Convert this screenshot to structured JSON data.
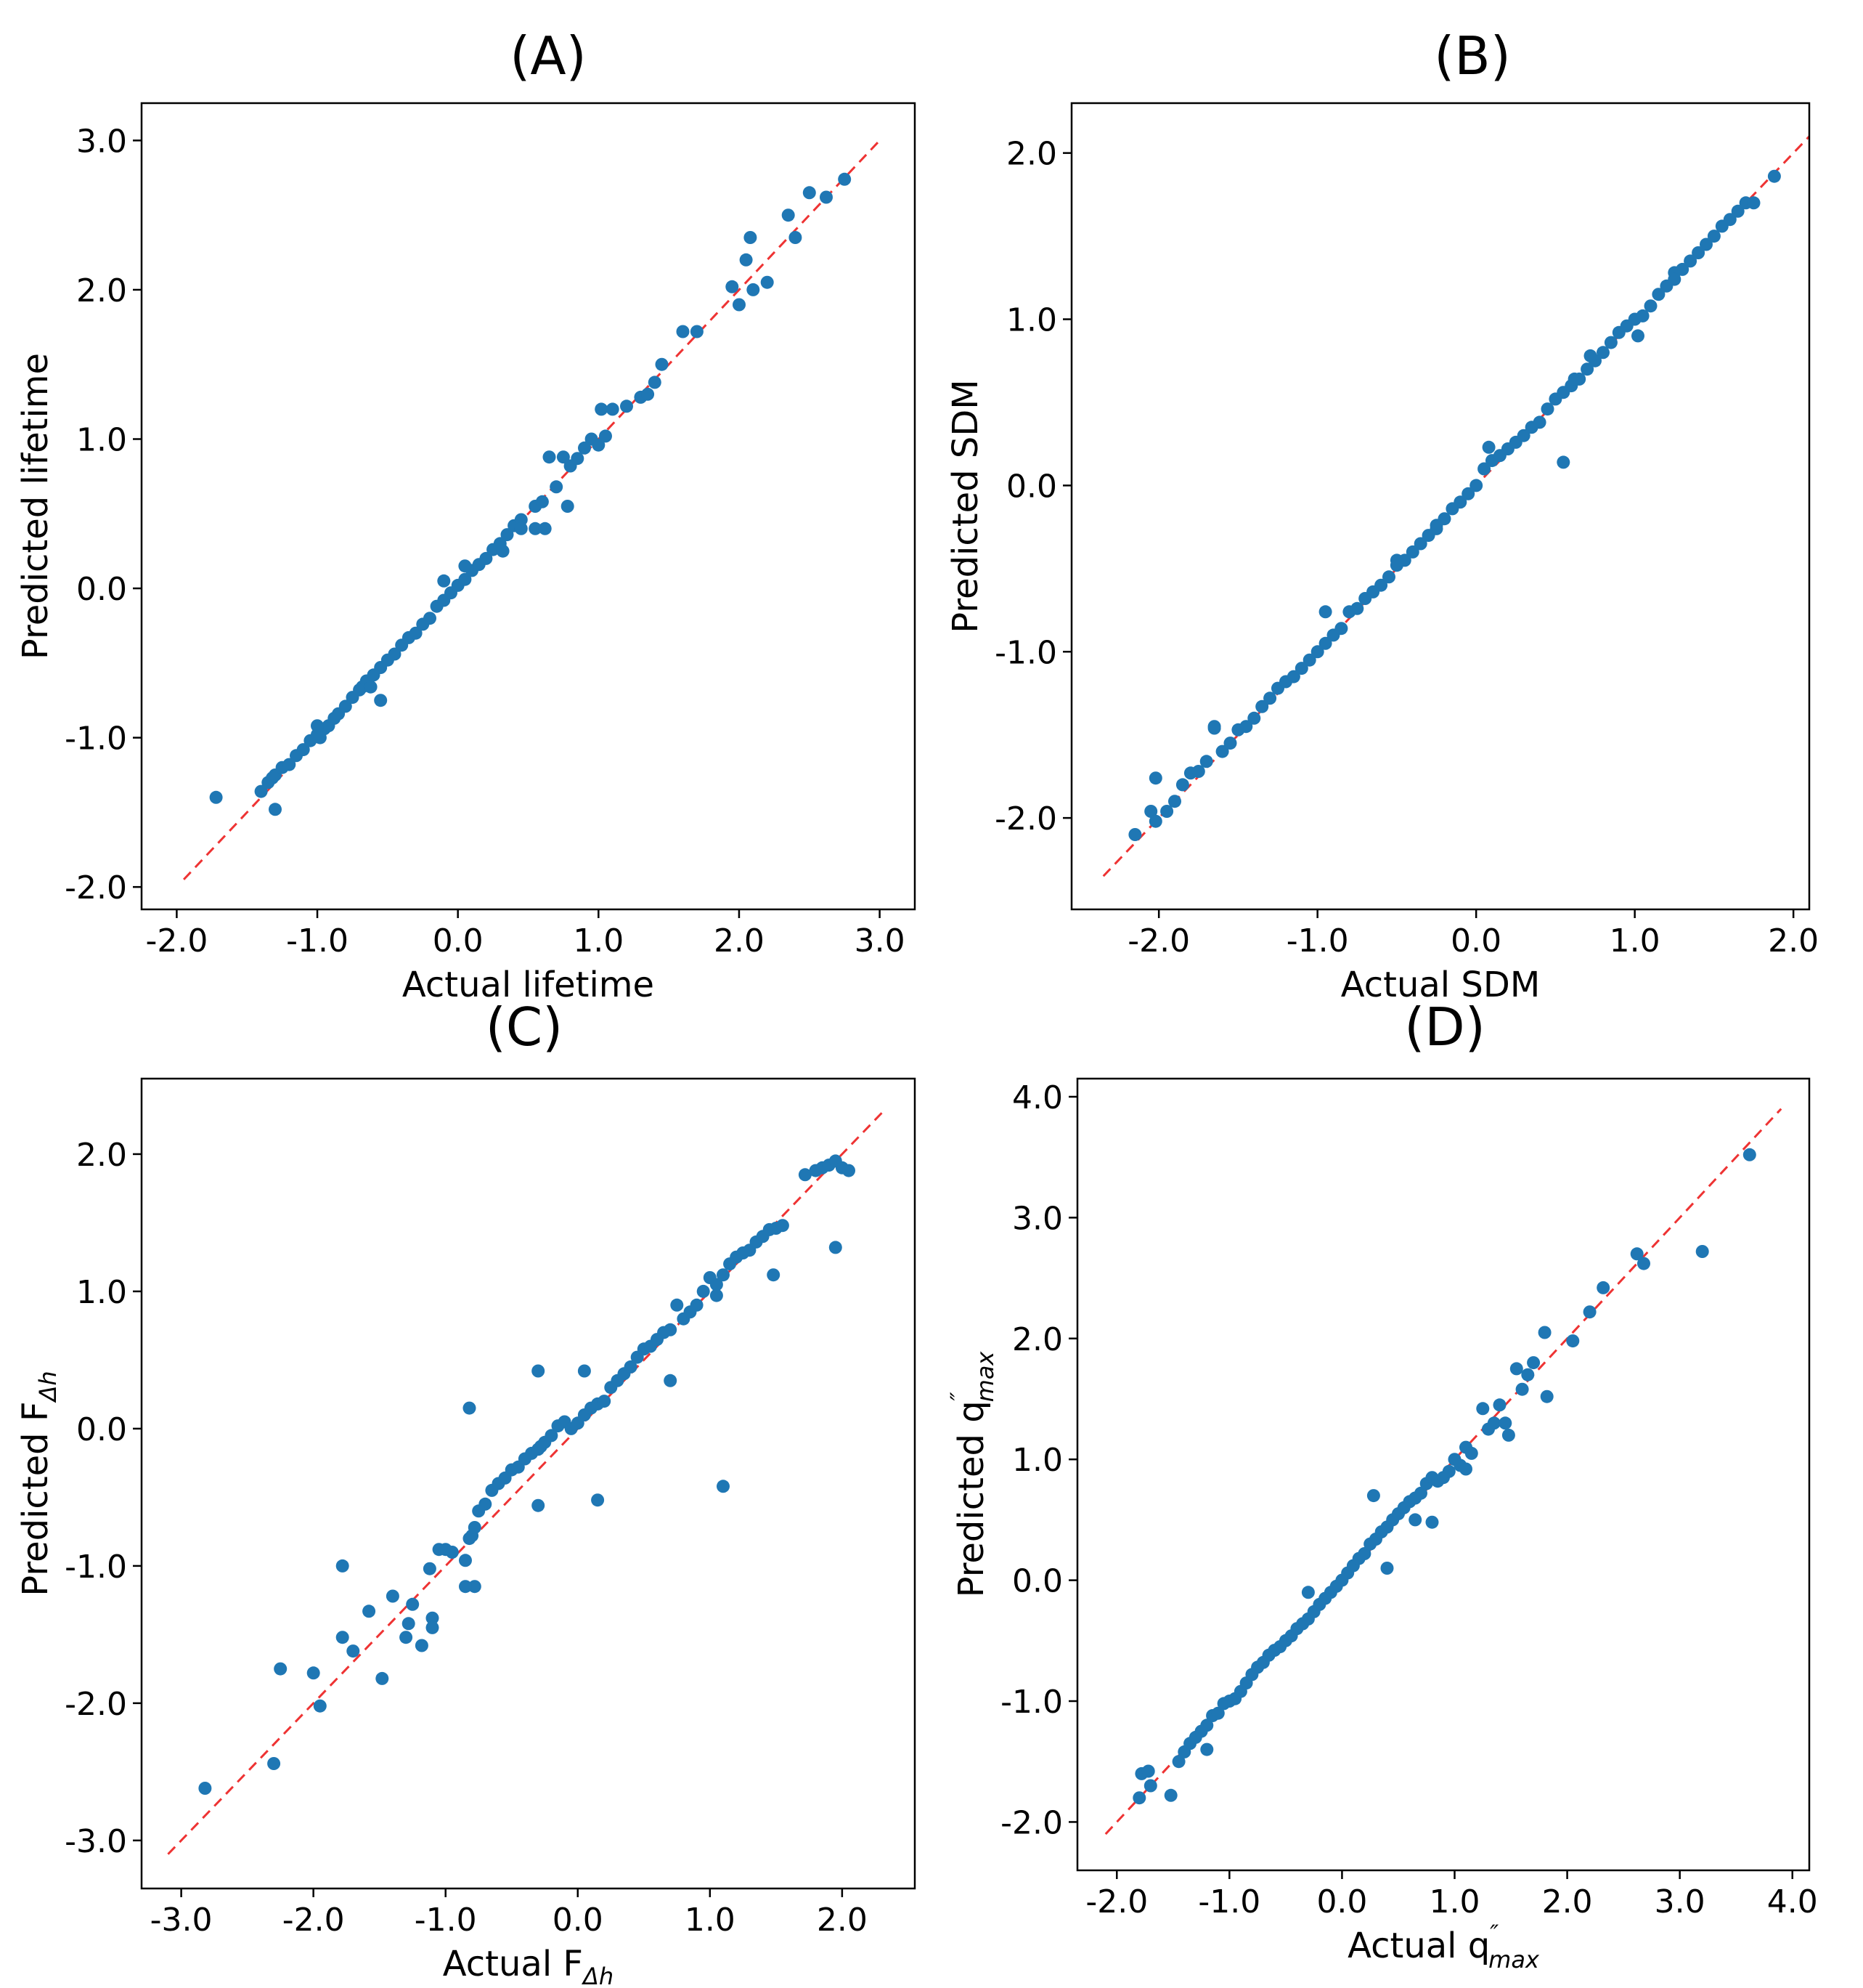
{
  "chart_data": [
    {
      "type": "scatter",
      "title": "(A)",
      "xlabel": "Actual lifetime",
      "ylabel": "Predicted lifetime",
      "xlim": [
        -2.25,
        3.25
      ],
      "ylim": [
        -2.15,
        3.25
      ],
      "xticks": [
        -2.0,
        -1.0,
        0.0,
        1.0,
        2.0,
        3.0
      ],
      "yticks": [
        -2.0,
        -1.0,
        0.0,
        1.0,
        2.0,
        3.0
      ],
      "xtick_labels": [
        "-2.0",
        "-1.0",
        "0.0",
        "1.0",
        "2.0",
        "3.0"
      ],
      "ytick_labels": [
        "-2.0",
        "-1.0",
        "0.0",
        "1.0",
        "2.0",
        "3.0"
      ],
      "reference_line": {
        "from": -1.95,
        "to": 3.0,
        "color": "#ee3333"
      },
      "point_color": "#1f77b4",
      "x": [
        -1.72,
        -1.4,
        -1.35,
        -1.32,
        -1.3,
        -1.25,
        -1.2,
        -1.15,
        -1.1,
        -1.05,
        -1.0,
        -0.95,
        -0.92,
        -0.88,
        -0.85,
        -0.8,
        -0.75,
        -0.7,
        -0.68,
        -0.65,
        -0.6,
        -0.55,
        -0.5,
        -0.45,
        -0.4,
        -0.35,
        -0.3,
        -0.25,
        -0.2,
        -0.15,
        -0.1,
        -0.05,
        0.0,
        0.05,
        0.1,
        0.15,
        0.2,
        0.25,
        0.3,
        0.35,
        0.4,
        0.45,
        0.55,
        0.6,
        0.65,
        0.7,
        0.75,
        0.8,
        0.85,
        0.9,
        0.95,
        1.0,
        1.05,
        1.1,
        1.2,
        1.3,
        1.35,
        1.4,
        1.45,
        1.6,
        1.7,
        1.95,
        2.0,
        2.05,
        2.1,
        2.2,
        2.35,
        2.4,
        2.5,
        2.62,
        2.75,
        -1.3,
        -1.0,
        -0.55,
        -0.1,
        0.05,
        0.45,
        -0.98,
        -0.62,
        0.32,
        0.55,
        0.62,
        1.02,
        2.08,
        0.78
      ],
      "y": [
        -1.4,
        -1.36,
        -1.3,
        -1.27,
        -1.25,
        -1.2,
        -1.18,
        -1.12,
        -1.08,
        -1.02,
        -0.98,
        -0.94,
        -0.92,
        -0.87,
        -0.84,
        -0.79,
        -0.73,
        -0.68,
        -0.66,
        -0.62,
        -0.58,
        -0.53,
        -0.48,
        -0.44,
        -0.38,
        -0.33,
        -0.3,
        -0.24,
        -0.2,
        -0.12,
        -0.08,
        -0.03,
        0.02,
        0.06,
        0.12,
        0.16,
        0.2,
        0.26,
        0.3,
        0.36,
        0.42,
        0.46,
        0.55,
        0.58,
        0.88,
        0.68,
        0.88,
        0.82,
        0.87,
        0.94,
        1.0,
        0.96,
        1.02,
        1.2,
        1.22,
        1.28,
        1.3,
        1.38,
        1.5,
        1.72,
        1.72,
        2.02,
        1.9,
        2.2,
        2.0,
        2.05,
        2.5,
        2.35,
        2.65,
        2.62,
        2.74,
        -1.48,
        -0.92,
        -0.75,
        0.05,
        0.15,
        0.4,
        -1.0,
        -0.66,
        0.25,
        0.4,
        0.4,
        1.2,
        2.35,
        0.55
      ]
    },
    {
      "type": "scatter",
      "title": "(B)",
      "xlabel": "Actual SDM",
      "ylabel": "Predicted SDM",
      "xlim": [
        -2.55,
        2.1
      ],
      "ylim": [
        -2.55,
        2.3
      ],
      "xticks": [
        -2.0,
        -1.0,
        0.0,
        1.0,
        2.0
      ],
      "yticks": [
        -2.0,
        -1.0,
        0.0,
        1.0,
        2.0
      ],
      "xtick_labels": [
        "-2.0",
        "-1.0",
        "0.0",
        "1.0",
        "2.0"
      ],
      "ytick_labels": [
        "-2.0",
        "-1.0",
        "0.0",
        "1.0",
        "2.0"
      ],
      "reference_line": {
        "from": -2.35,
        "to": 2.1,
        "color": "#ee3333"
      },
      "point_color": "#1f77b4",
      "x": [
        -2.15,
        -2.05,
        -2.02,
        -1.95,
        -1.9,
        -1.85,
        -1.8,
        -1.75,
        -1.7,
        -1.65,
        -1.6,
        -1.55,
        -1.5,
        -1.45,
        -1.4,
        -1.35,
        -1.3,
        -1.25,
        -1.2,
        -1.15,
        -1.1,
        -1.05,
        -1.0,
        -0.95,
        -0.9,
        -0.85,
        -0.8,
        -0.75,
        -0.7,
        -0.65,
        -0.6,
        -0.55,
        -0.5,
        -0.45,
        -0.4,
        -0.35,
        -0.3,
        -0.25,
        -0.2,
        -0.15,
        -0.1,
        -0.05,
        0.0,
        0.05,
        0.1,
        0.15,
        0.2,
        0.25,
        0.3,
        0.35,
        0.4,
        0.45,
        0.5,
        0.55,
        0.6,
        0.65,
        0.7,
        0.75,
        0.8,
        0.85,
        0.9,
        0.95,
        1.0,
        1.05,
        1.1,
        1.15,
        1.2,
        1.25,
        1.3,
        1.35,
        1.4,
        1.45,
        1.5,
        1.55,
        1.6,
        1.65,
        1.7,
        1.75,
        1.88,
        -2.02,
        -1.65,
        -0.95,
        -0.5,
        0.08,
        0.55,
        0.62,
        1.02,
        1.25,
        -0.25,
        0.72
      ],
      "y": [
        -2.1,
        -1.96,
        -1.76,
        -1.96,
        -1.9,
        -1.8,
        -1.73,
        -1.72,
        -1.66,
        -1.46,
        -1.6,
        -1.55,
        -1.47,
        -1.45,
        -1.4,
        -1.33,
        -1.28,
        -1.22,
        -1.18,
        -1.15,
        -1.1,
        -1.05,
        -1.0,
        -0.95,
        -0.9,
        -0.86,
        -0.76,
        -0.74,
        -0.68,
        -0.64,
        -0.6,
        -0.55,
        -0.48,
        -0.45,
        -0.4,
        -0.35,
        -0.3,
        -0.26,
        -0.2,
        -0.14,
        -0.1,
        -0.05,
        0.0,
        0.1,
        0.15,
        0.18,
        0.22,
        0.26,
        0.3,
        0.35,
        0.38,
        0.46,
        0.52,
        0.56,
        0.6,
        0.64,
        0.7,
        0.75,
        0.8,
        0.86,
        0.92,
        0.96,
        1.0,
        1.02,
        1.08,
        1.15,
        1.2,
        1.28,
        1.3,
        1.35,
        1.4,
        1.45,
        1.5,
        1.56,
        1.6,
        1.65,
        1.7,
        1.7,
        1.86,
        -2.02,
        -1.45,
        -0.76,
        -0.45,
        0.23,
        0.14,
        0.64,
        0.9,
        1.24,
        -0.24,
        0.78
      ]
    },
    {
      "type": "scatter",
      "title": "(C)",
      "xlabel": "Actual F",
      "xlabel_sub": "Δh",
      "ylabel": "Predicted F",
      "ylabel_sub": "Δh",
      "xlim": [
        -3.3,
        2.55
      ],
      "ylim": [
        -3.35,
        2.55
      ],
      "xticks": [
        -3.0,
        -2.0,
        -1.0,
        0.0,
        1.0,
        2.0
      ],
      "yticks": [
        -3.0,
        -2.0,
        -1.0,
        0.0,
        1.0,
        2.0
      ],
      "xtick_labels": [
        "-3.0",
        "-2.0",
        "-1.0",
        "0.0",
        "1.0",
        "2.0"
      ],
      "ytick_labels": [
        "-3.0",
        "-2.0",
        "-1.0",
        "0.0",
        "1.0",
        "2.0"
      ],
      "reference_line": {
        "from": -3.1,
        "to": 2.3,
        "color": "#ee3333"
      },
      "point_color": "#1f77b4",
      "x": [
        -2.82,
        -2.3,
        -2.25,
        -2.0,
        -1.95,
        -1.78,
        -1.78,
        -1.7,
        -1.58,
        -1.48,
        -1.4,
        -1.3,
        -1.28,
        -1.25,
        -1.18,
        -1.12,
        -1.1,
        -1.1,
        -1.05,
        -1.0,
        -0.95,
        -0.85,
        -0.82,
        -0.8,
        -0.78,
        -0.75,
        -0.7,
        -0.65,
        -0.6,
        -0.55,
        -0.5,
        -0.45,
        -0.4,
        -0.35,
        -0.3,
        -0.28,
        -0.25,
        -0.2,
        -0.15,
        -0.1,
        -0.05,
        0.0,
        0.05,
        0.1,
        0.15,
        0.2,
        0.25,
        0.3,
        0.35,
        0.4,
        0.45,
        0.5,
        0.55,
        0.6,
        0.65,
        0.7,
        0.75,
        0.8,
        0.85,
        0.9,
        0.95,
        1.0,
        1.05,
        1.1,
        1.15,
        1.2,
        1.25,
        1.3,
        1.35,
        1.4,
        1.45,
        1.5,
        1.55,
        1.72,
        1.8,
        1.85,
        1.9,
        1.95,
        2.0,
        2.05,
        1.95,
        1.1,
        -0.82,
        0.15,
        -0.3,
        0.05,
        -0.78,
        -0.85,
        -0.3,
        0.7,
        1.48,
        1.05
      ],
      "y": [
        -2.62,
        -2.44,
        -1.75,
        -1.78,
        -2.02,
        -1.0,
        -1.52,
        -1.62,
        -1.33,
        -1.82,
        -1.22,
        -1.52,
        -1.42,
        -1.28,
        -1.58,
        -1.02,
        -1.38,
        -1.45,
        -0.88,
        -0.88,
        -0.9,
        -0.96,
        -0.8,
        -0.78,
        -0.72,
        -0.6,
        -0.55,
        -0.45,
        -0.4,
        -0.36,
        -0.3,
        -0.28,
        -0.22,
        -0.18,
        -0.15,
        -0.13,
        -0.1,
        -0.05,
        0.02,
        0.05,
        0.0,
        0.04,
        0.1,
        0.15,
        0.18,
        0.2,
        0.3,
        0.35,
        0.4,
        0.45,
        0.52,
        0.58,
        0.6,
        0.65,
        0.7,
        0.72,
        0.9,
        0.8,
        0.85,
        0.9,
        1.0,
        1.1,
        1.05,
        1.12,
        1.2,
        1.25,
        1.28,
        1.3,
        1.36,
        1.4,
        1.45,
        1.46,
        1.48,
        1.85,
        1.88,
        1.9,
        1.92,
        1.95,
        1.9,
        1.88,
        1.32,
        -0.42,
        0.15,
        -0.52,
        0.42,
        0.42,
        -1.15,
        -1.15,
        -0.56,
        0.35,
        1.12,
        0.97
      ]
    },
    {
      "type": "scatter",
      "title": "(D)",
      "xlabel": "Actual q",
      "xlabel_sub": "max",
      "xlabel_sup": "″",
      "ylabel": "Predicted q",
      "ylabel_sub": "max",
      "ylabel_sup": "″",
      "xlim": [
        -2.35,
        4.15
      ],
      "ylim": [
        -2.4,
        4.15
      ],
      "xticks": [
        -2.0,
        -1.0,
        0.0,
        1.0,
        2.0,
        3.0,
        4.0
      ],
      "yticks": [
        -2.0,
        -1.0,
        0.0,
        1.0,
        2.0,
        3.0,
        4.0
      ],
      "xtick_labels": [
        "-2.0",
        "-1.0",
        "0.0",
        "1.0",
        "2.0",
        "3.0",
        "4.0"
      ],
      "ytick_labels": [
        "-2.0",
        "-1.0",
        "0.0",
        "1.0",
        "2.0",
        "3.0",
        "4.0"
      ],
      "reference_line": {
        "from": -2.1,
        "to": 3.9,
        "color": "#ee3333"
      },
      "point_color": "#1f77b4",
      "x": [
        -1.8,
        -1.78,
        -1.72,
        -1.7,
        -1.52,
        -1.45,
        -1.4,
        -1.35,
        -1.3,
        -1.25,
        -1.2,
        -1.15,
        -1.1,
        -1.05,
        -1.0,
        -0.95,
        -0.9,
        -0.85,
        -0.8,
        -0.75,
        -0.7,
        -0.65,
        -0.6,
        -0.55,
        -0.5,
        -0.45,
        -0.4,
        -0.35,
        -0.3,
        -0.25,
        -0.2,
        -0.15,
        -0.1,
        -0.05,
        0.0,
        0.05,
        0.1,
        0.15,
        0.2,
        0.25,
        0.3,
        0.35,
        0.4,
        0.45,
        0.5,
        0.55,
        0.6,
        0.65,
        0.7,
        0.75,
        0.8,
        0.85,
        0.9,
        0.95,
        1.0,
        1.05,
        1.1,
        1.15,
        1.25,
        1.3,
        1.35,
        1.4,
        1.45,
        1.55,
        1.6,
        1.65,
        1.7,
        1.8,
        1.82,
        2.05,
        2.2,
        2.32,
        2.62,
        2.68,
        3.2,
        3.62,
        0.28,
        0.4,
        1.48,
        0.8,
        0.65,
        -1.2,
        1.1,
        -0.3
      ],
      "y": [
        -1.8,
        -1.6,
        -1.58,
        -1.7,
        -1.78,
        -1.5,
        -1.42,
        -1.35,
        -1.3,
        -1.25,
        -1.2,
        -1.12,
        -1.1,
        -1.02,
        -1.0,
        -0.98,
        -0.92,
        -0.85,
        -0.78,
        -0.72,
        -0.68,
        -0.62,
        -0.58,
        -0.55,
        -0.5,
        -0.46,
        -0.4,
        -0.36,
        -0.32,
        -0.26,
        -0.2,
        -0.15,
        -0.1,
        -0.05,
        0.0,
        0.06,
        0.12,
        0.18,
        0.22,
        0.3,
        0.34,
        0.4,
        0.44,
        0.5,
        0.55,
        0.6,
        0.65,
        0.68,
        0.72,
        0.8,
        0.85,
        0.82,
        0.85,
        0.9,
        1.0,
        0.95,
        1.1,
        1.05,
        1.42,
        1.25,
        1.3,
        1.45,
        1.3,
        1.75,
        1.58,
        1.7,
        1.8,
        2.05,
        1.52,
        1.98,
        2.22,
        2.42,
        2.7,
        2.62,
        2.72,
        3.52,
        0.7,
        0.1,
        1.2,
        0.48,
        0.5,
        -1.4,
        0.92,
        -0.1
      ]
    }
  ]
}
